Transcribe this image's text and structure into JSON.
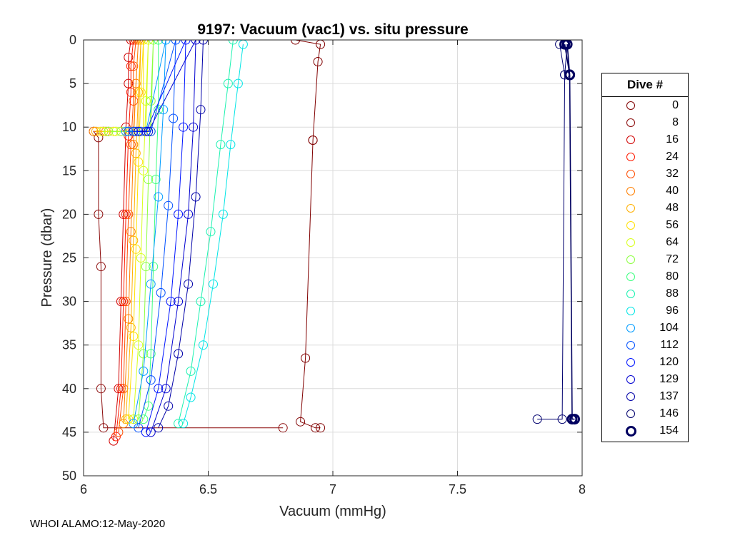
{
  "chart_data": {
    "type": "scatter",
    "title": "9197: Vacuum (vac1) vs. situ pressure",
    "xlabel": "Vacuum (mmHg)",
    "ylabel": "Pressure (dbar)",
    "xlim": [
      6,
      8
    ],
    "ylim": [
      0,
      50
    ],
    "y_reversed": true,
    "grid": true,
    "xticks": [
      6,
      6.5,
      7,
      7.5,
      8
    ],
    "xtick_labels": [
      "6",
      "6.5",
      "7",
      "7.5",
      "8"
    ],
    "yticks": [
      0,
      5,
      10,
      15,
      20,
      25,
      30,
      35,
      40,
      45,
      50
    ],
    "ytick_labels": [
      "0",
      "5",
      "10",
      "15",
      "20",
      "25",
      "30",
      "35",
      "40",
      "45",
      "50"
    ],
    "legend_position": "outside-right",
    "legend_title": "Dive #",
    "series": [
      {
        "name": "0",
        "color": "#800000",
        "x": [
          6.85,
          6.95,
          6.94,
          6.92,
          6.92,
          6.89,
          6.87,
          6.93,
          6.95
        ],
        "y": [
          0,
          0.5,
          2.5,
          11.5,
          11.5,
          36.5,
          43.8,
          44.5,
          44.5
        ]
      },
      {
        "name": "8",
        "color": "#8b0a0a",
        "x": [
          6.08,
          6.04,
          6.06,
          6.06,
          6.07,
          6.07,
          6.08,
          6.8
        ],
        "y": [
          10.5,
          10.5,
          11.2,
          20.0,
          26.0,
          40.0,
          44.5,
          44.5
        ]
      },
      {
        "name": "16",
        "color": "#d00000",
        "x": [
          6.19,
          6.18,
          6.18,
          6.17,
          6.16,
          6.15,
          6.14,
          6.12
        ],
        "y": [
          0,
          2,
          5,
          10,
          20,
          30,
          40,
          46
        ]
      },
      {
        "name": "24",
        "color": "#ff1a00",
        "x": [
          6.2,
          6.19,
          6.19,
          6.18,
          6.17,
          6.16,
          6.15,
          6.13
        ],
        "y": [
          0,
          3,
          6,
          11,
          20,
          30,
          40,
          45.5
        ]
      },
      {
        "name": "32",
        "color": "#ff4d00",
        "x": [
          6.21,
          6.2,
          6.2,
          6.19,
          6.18,
          6.17,
          6.16,
          6.14
        ],
        "y": [
          0,
          3,
          7,
          12,
          20,
          30,
          40,
          45
        ]
      },
      {
        "name": "40",
        "color": "#ff7f00",
        "x": [
          6.04,
          6.09,
          6.15,
          6.2,
          6.22,
          6.21,
          6.2,
          6.19,
          6.18,
          6.16
        ],
        "y": [
          10.5,
          10.5,
          10.5,
          10.5,
          0,
          5,
          12,
          22,
          32,
          44
        ]
      },
      {
        "name": "48",
        "color": "#ffb000",
        "x": [
          6.05,
          6.1,
          6.17,
          6.22,
          6.23,
          6.22,
          6.21,
          6.2,
          6.19,
          6.17
        ],
        "y": [
          10.5,
          10.5,
          10.5,
          10.5,
          0,
          6,
          13,
          23,
          33,
          43.5
        ]
      },
      {
        "name": "56",
        "color": "#ffe000",
        "x": [
          6.07,
          6.12,
          6.18,
          6.24,
          6.24,
          6.23,
          6.22,
          6.21,
          6.2,
          6.18
        ],
        "y": [
          10.5,
          10.5,
          10.5,
          10.5,
          0,
          6,
          14,
          24,
          34,
          43.5
        ]
      },
      {
        "name": "64",
        "color": "#d8ff1a",
        "x": [
          6.08,
          6.13,
          6.19,
          6.25,
          6.26,
          6.25,
          6.24,
          6.23,
          6.22,
          6.2
        ],
        "y": [
          10.5,
          10.5,
          10.5,
          10.5,
          0,
          7,
          15,
          25,
          35,
          43.5
        ]
      },
      {
        "name": "72",
        "color": "#8cff40",
        "x": [
          6.1,
          6.15,
          6.21,
          6.27,
          6.28,
          6.27,
          6.26,
          6.25,
          6.24,
          6.22
        ],
        "y": [
          10.5,
          10.5,
          10.5,
          10.5,
          0,
          7,
          16,
          26,
          36,
          43.5
        ]
      },
      {
        "name": "80",
        "color": "#3dff80",
        "x": [
          6.3,
          6.3,
          6.29,
          6.28,
          6.27,
          6.26,
          6.24
        ],
        "y": [
          0,
          8,
          16,
          26,
          36,
          42,
          43.5
        ]
      },
      {
        "name": "88",
        "color": "#1af2b0",
        "x": [
          6.6,
          6.58,
          6.55,
          6.51,
          6.47,
          6.43,
          6.38
        ],
        "y": [
          0,
          5,
          12,
          22,
          30,
          38,
          44
        ]
      },
      {
        "name": "96",
        "color": "#00e5e5",
        "x": [
          6.64,
          6.62,
          6.59,
          6.56,
          6.52,
          6.48,
          6.43,
          6.4
        ],
        "y": [
          0.5,
          5,
          12,
          20,
          28,
          35,
          41,
          44
        ]
      },
      {
        "name": "104",
        "color": "#009cff",
        "x": [
          6.17,
          6.21,
          6.25,
          6.33,
          6.32,
          6.3,
          6.27,
          6.24,
          6.2
        ],
        "y": [
          10.5,
          10.5,
          10.5,
          0,
          8,
          18,
          28,
          38,
          44
        ]
      },
      {
        "name": "112",
        "color": "#0050ff",
        "x": [
          6.18,
          6.23,
          6.27,
          6.37,
          6.36,
          6.34,
          6.31,
          6.27,
          6.22
        ],
        "y": [
          10.5,
          10.5,
          10.5,
          0,
          9,
          19,
          29,
          39,
          44.5
        ]
      },
      {
        "name": "120",
        "color": "#0014ff",
        "x": [
          6.2,
          6.25,
          6.41,
          6.4,
          6.38,
          6.35,
          6.3,
          6.25
        ],
        "y": [
          10.5,
          10.5,
          0,
          10,
          20,
          30,
          40,
          45
        ]
      },
      {
        "name": "129",
        "color": "#0000d0",
        "x": [
          6.22,
          6.26,
          6.45,
          6.44,
          6.42,
          6.38,
          6.33,
          6.27
        ],
        "y": [
          10.5,
          10.5,
          0,
          10,
          20,
          30,
          40,
          45
        ]
      },
      {
        "name": "137",
        "color": "#0000a8",
        "x": [
          6.48,
          6.47,
          6.45,
          6.42,
          6.38,
          6.34,
          6.3
        ],
        "y": [
          0,
          8,
          18,
          28,
          36,
          42,
          44.5
        ]
      },
      {
        "name": "146",
        "color": "#00006e",
        "x": [
          7.91,
          7.93,
          7.94,
          7.93,
          7.92,
          7.82
        ],
        "y": [
          0.5,
          4,
          0.5,
          4,
          43.5,
          43.5
        ]
      },
      {
        "name": "154",
        "color": "#000060",
        "x": [
          7.93,
          7.95,
          7.94,
          7.95,
          7.96,
          7.97
        ],
        "y": [
          0.5,
          4,
          0.5,
          4,
          43.5,
          43.5
        ],
        "bold": true
      }
    ]
  },
  "footer": "WHOI ALAMO:12-May-2020"
}
